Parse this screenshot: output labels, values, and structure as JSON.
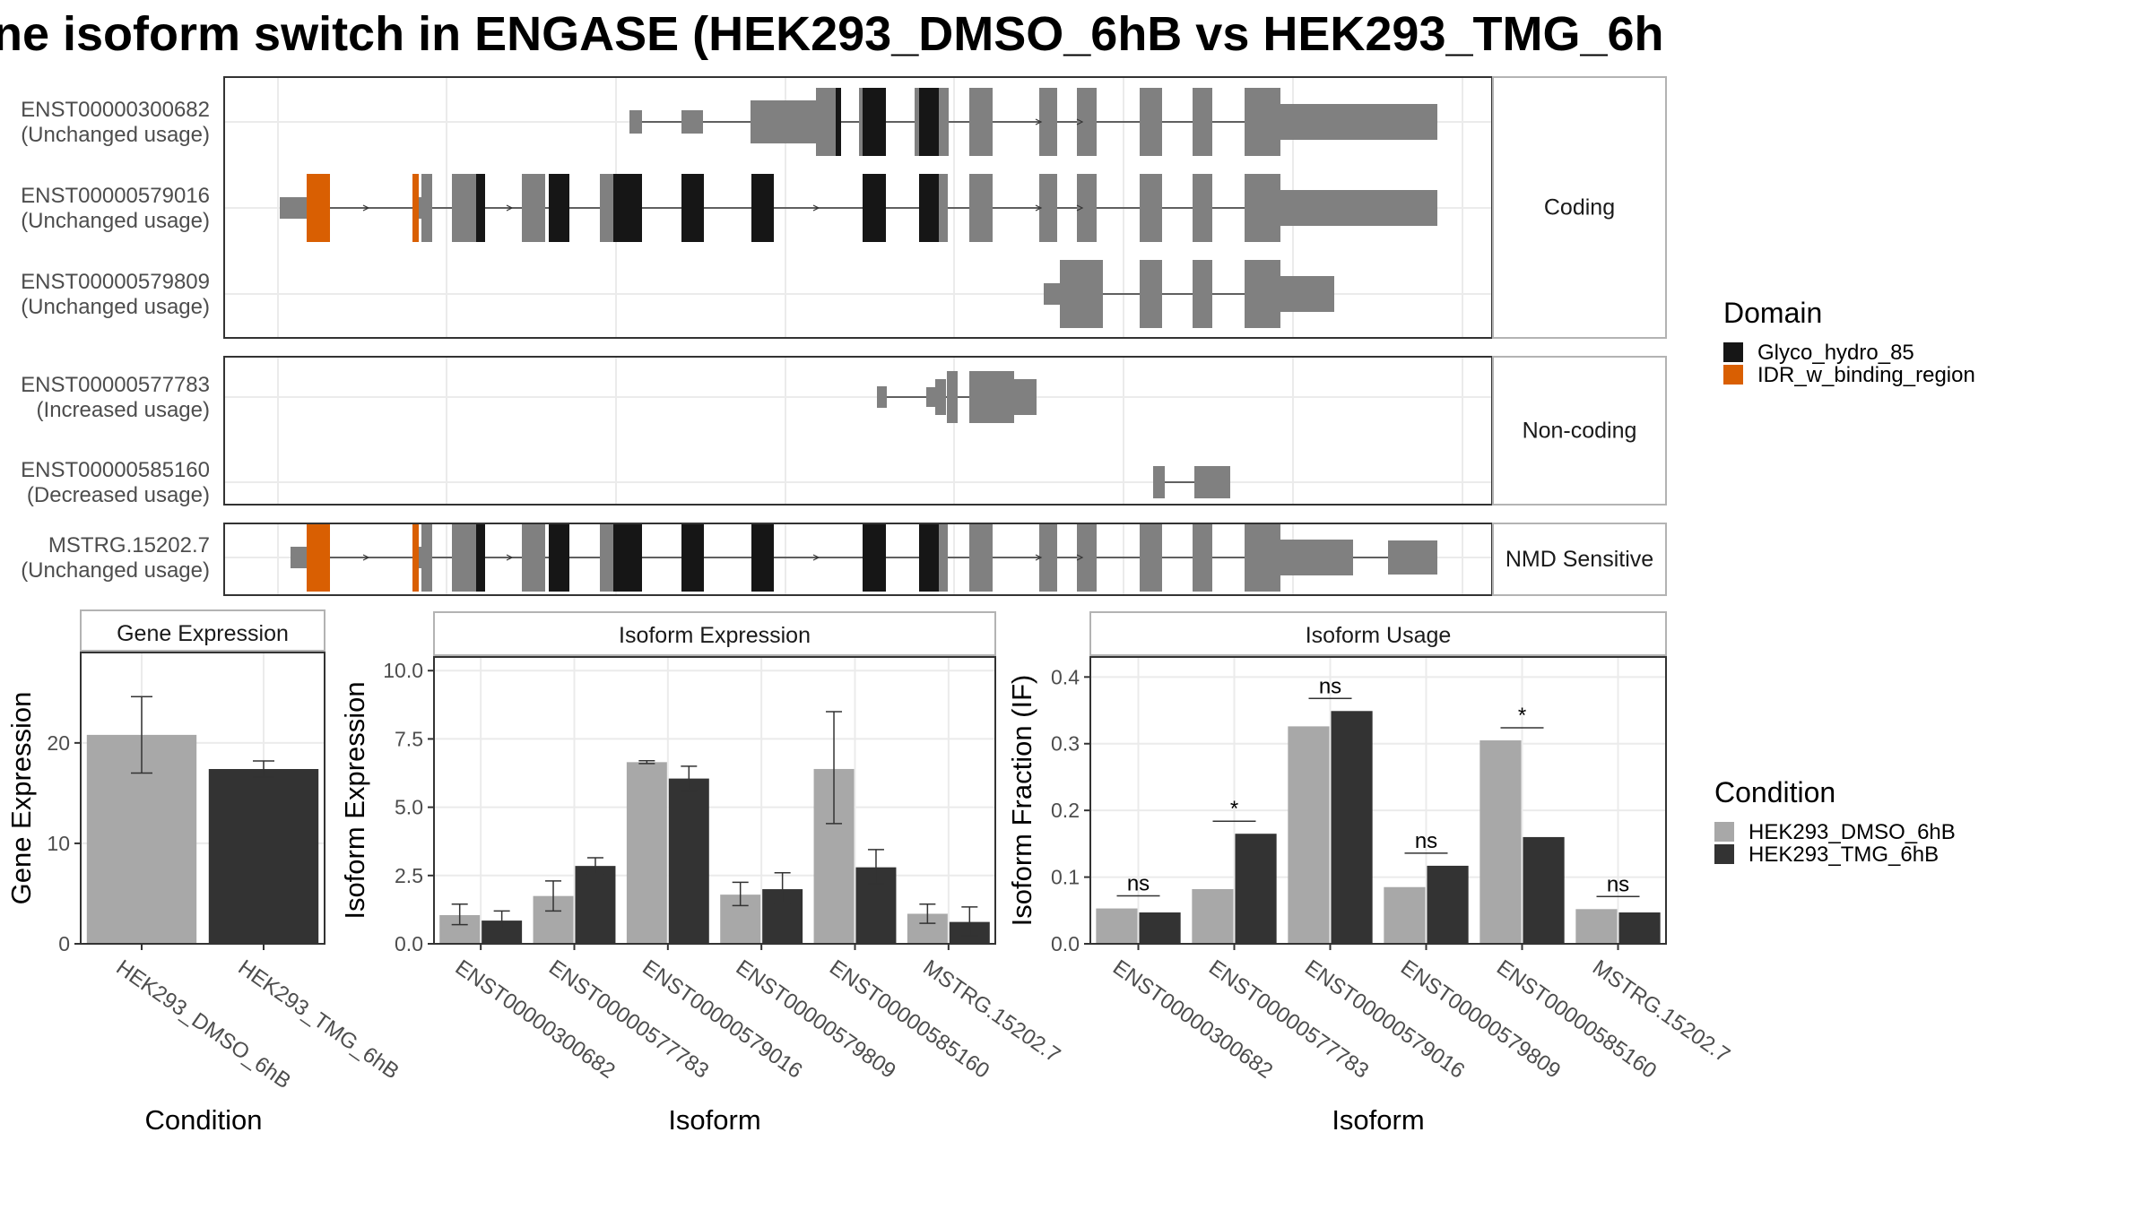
{
  "title": "ne isoform switch in ENGASE (HEK293_DMSO_6hB vs HEK293_TMG_6h",
  "structure": {
    "groups": [
      {
        "label": "Coding",
        "isoforms": [
          {
            "id": "ENST00000300682",
            "usage": "(Unchanged usage)"
          },
          {
            "id": "ENST00000579016",
            "usage": "(Unchanged usage)"
          },
          {
            "id": "ENST00000579809",
            "usage": "(Unchanged usage)"
          }
        ]
      },
      {
        "label": "Non-coding",
        "isoforms": [
          {
            "id": "ENST00000577783",
            "usage": "(Increased usage)"
          },
          {
            "id": "ENST00000585160",
            "usage": "(Decreased usage)"
          }
        ]
      },
      {
        "label": "NMD Sensitive",
        "isoforms": [
          {
            "id": "MSTRG.15202.7",
            "usage": "(Unchanged usage)"
          }
        ]
      }
    ]
  },
  "legend_domain": {
    "title": "Domain",
    "items": [
      {
        "label": "Glyco_hydro_85",
        "color": "#161616"
      },
      {
        "label": "IDR_w_binding_region",
        "color": "#d95f02"
      }
    ]
  },
  "legend_condition": {
    "title": "Condition",
    "items": [
      {
        "label": "HEK293_DMSO_6hB",
        "color": "#a8a8a8"
      },
      {
        "label": "HEK293_TMG_6hB",
        "color": "#333333"
      }
    ]
  },
  "colors": {
    "exon": "#808080",
    "domain": "#161616",
    "idr": "#d95f02",
    "cond1": "#a8a8a8",
    "cond2": "#333333"
  },
  "chart_data": [
    {
      "type": "bar",
      "title": "Gene Expression",
      "xlabel": "Condition",
      "ylabel": "Gene Expression",
      "ylim": [
        0,
        29
      ],
      "yticks": [
        0,
        10,
        20
      ],
      "categories": [
        "HEK293_DMSO_6hB",
        "HEK293_TMG_6hB"
      ],
      "values": [
        20.8,
        17.4
      ],
      "errors": [
        [
          17.0,
          24.6
        ],
        [
          16.6,
          18.2
        ]
      ]
    },
    {
      "type": "bar",
      "title": "Isoform Expression",
      "xlabel": "Isoform",
      "ylabel": "Isoform Expression",
      "ylim": [
        0,
        10.5
      ],
      "yticks": [
        "0.0",
        "2.5",
        "5.0",
        "7.5",
        "10.0"
      ],
      "categories": [
        "ENST00000300682",
        "ENST00000577783",
        "ENST00000579016",
        "ENST00000579809",
        "ENST00000585160",
        "MSTRG.15202.7"
      ],
      "series": [
        {
          "name": "HEK293_DMSO_6hB",
          "values": [
            1.05,
            1.75,
            6.65,
            1.8,
            6.4,
            1.1
          ],
          "errors": [
            [
              0.7,
              1.45
            ],
            [
              1.2,
              2.3
            ],
            [
              6.6,
              6.7
            ],
            [
              1.4,
              2.25
            ],
            [
              4.4,
              8.5
            ],
            [
              0.75,
              1.45
            ]
          ]
        },
        {
          "name": "HEK293_TMG_6hB",
          "values": [
            0.85,
            2.85,
            6.05,
            2.0,
            2.8,
            0.8
          ],
          "errors": [
            [
              0.55,
              1.2
            ],
            [
              2.55,
              3.15
            ],
            [
              5.6,
              6.5
            ],
            [
              1.5,
              2.6
            ],
            [
              2.2,
              3.45
            ],
            [
              0.3,
              1.35
            ]
          ]
        }
      ]
    },
    {
      "type": "bar",
      "title": "Isoform Usage",
      "xlabel": "Isoform",
      "ylabel": "Isoform Fraction (IF)",
      "ylim": [
        0,
        0.43
      ],
      "yticks": [
        "0.0",
        "0.1",
        "0.2",
        "0.3",
        "0.4"
      ],
      "categories": [
        "ENST00000300682",
        "ENST00000577783",
        "ENST00000579016",
        "ENST00000579809",
        "ENST00000585160",
        "MSTRG.15202.7"
      ],
      "series": [
        {
          "name": "HEK293_DMSO_6hB",
          "values": [
            0.053,
            0.082,
            0.326,
            0.085,
            0.305,
            0.052
          ]
        },
        {
          "name": "HEK293_TMG_6hB",
          "values": [
            0.047,
            0.165,
            0.349,
            0.117,
            0.16,
            0.047
          ]
        }
      ],
      "significance": [
        "ns",
        "*",
        "ns",
        "ns",
        "*",
        "ns"
      ]
    }
  ]
}
